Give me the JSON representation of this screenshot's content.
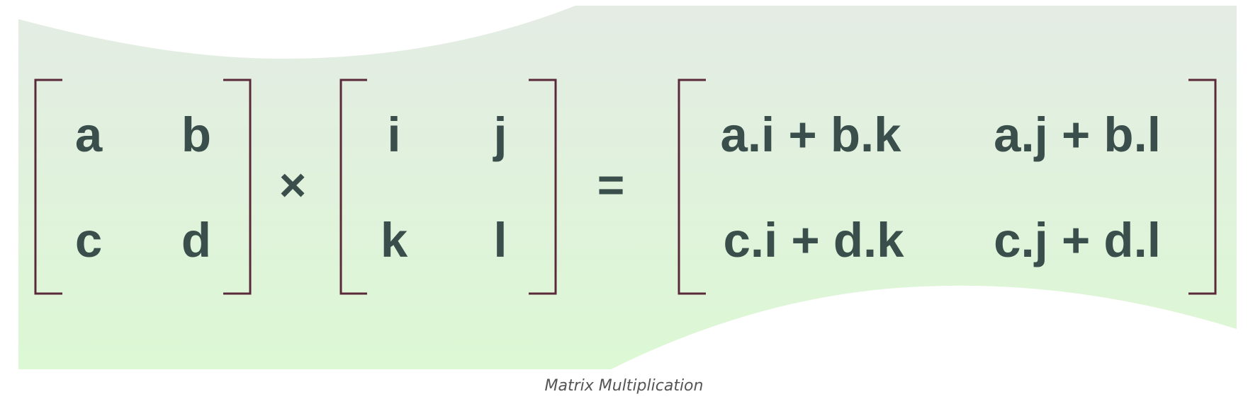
{
  "diagram": {
    "matrix_a": {
      "rows": [
        [
          "a",
          "b"
        ],
        [
          "c",
          "d"
        ]
      ]
    },
    "multiply_symbol": "×",
    "matrix_b": {
      "rows": [
        [
          "i",
          "j"
        ],
        [
          "k",
          "l"
        ]
      ]
    },
    "equals_symbol": "=",
    "result_matrix": {
      "rows": [
        [
          "a.i + b.k",
          "a.j + b.l"
        ],
        [
          "c.i + d.k",
          "c.j + d.l"
        ]
      ]
    },
    "colors": {
      "text": "#3a4e4c",
      "bracket": "#5a2a3a",
      "background_top": "#e4ece4",
      "background_bottom": "#dcf8d4",
      "caption": "#555555"
    }
  },
  "caption": "Matrix Multiplication"
}
